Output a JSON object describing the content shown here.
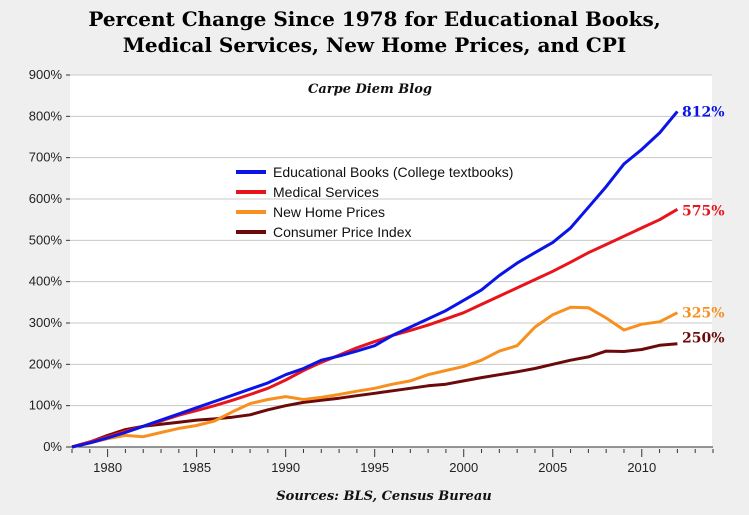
{
  "chart_data": {
    "type": "line",
    "title_line1": "Percent Change Since 1978 for Educational Books,",
    "title_line2": "Medical Services, New Home Prices, and CPI",
    "subtitle": "Carpe Diem Blog",
    "source": "Sources: BLS, Census Bureau",
    "xlabel": "",
    "ylabel": "",
    "xlim": [
      1978,
      2014
    ],
    "ylim": [
      0,
      900
    ],
    "x_ticks": [
      1980,
      1985,
      1990,
      1995,
      2000,
      2005,
      2010
    ],
    "y_ticks": [
      "0%",
      "100%",
      "200%",
      "300%",
      "400%",
      "500%",
      "600%",
      "700%",
      "800%",
      "900%"
    ],
    "grid": "horizontal",
    "legend_position": "center-left",
    "x": [
      1978,
      1979,
      1980,
      1981,
      1982,
      1983,
      1984,
      1985,
      1986,
      1987,
      1988,
      1989,
      1990,
      1991,
      1992,
      1993,
      1994,
      1995,
      1996,
      1997,
      1998,
      1999,
      2000,
      2001,
      2002,
      2003,
      2004,
      2005,
      2006,
      2007,
      2008,
      2009,
      2010,
      2011,
      2012
    ],
    "series": [
      {
        "name": "Educational Books  (College textbooks)",
        "color": "#0a14e6",
        "end_label": "812%",
        "values": [
          0,
          10,
          22,
          35,
          50,
          65,
          80,
          95,
          110,
          125,
          140,
          155,
          175,
          190,
          210,
          220,
          232,
          245,
          270,
          290,
          310,
          330,
          355,
          380,
          415,
          445,
          470,
          495,
          530,
          580,
          630,
          685,
          720,
          760,
          812
        ]
      },
      {
        "name": "Medical Services",
        "color": "#e8141c",
        "end_label": "575%",
        "values": [
          0,
          12,
          25,
          38,
          50,
          63,
          77,
          88,
          100,
          113,
          127,
          142,
          162,
          185,
          205,
          222,
          240,
          255,
          270,
          282,
          295,
          310,
          325,
          345,
          365,
          385,
          405,
          425,
          447,
          470,
          490,
          510,
          530,
          550,
          575
        ]
      },
      {
        "name": "New Home Prices",
        "color": "#f7901e",
        "end_label": "325%",
        "values": [
          0,
          10,
          20,
          28,
          25,
          35,
          45,
          52,
          63,
          85,
          105,
          115,
          122,
          115,
          120,
          127,
          135,
          142,
          152,
          160,
          175,
          185,
          195,
          210,
          232,
          245,
          290,
          320,
          338,
          337,
          312,
          283,
          297,
          303,
          325
        ]
      },
      {
        "name": "Consumer Price Index",
        "color": "#6b0a0a",
        "end_label": "250%",
        "values": [
          0,
          12,
          28,
          42,
          50,
          55,
          60,
          65,
          68,
          72,
          78,
          90,
          100,
          108,
          113,
          118,
          124,
          130,
          136,
          142,
          148,
          152,
          160,
          168,
          175,
          182,
          190,
          200,
          210,
          218,
          232,
          231,
          236,
          246,
          250
        ]
      }
    ],
    "colors": {
      "background": "#efefef",
      "plot_background": "#ffffff",
      "grid": "#c8c8c8"
    }
  }
}
